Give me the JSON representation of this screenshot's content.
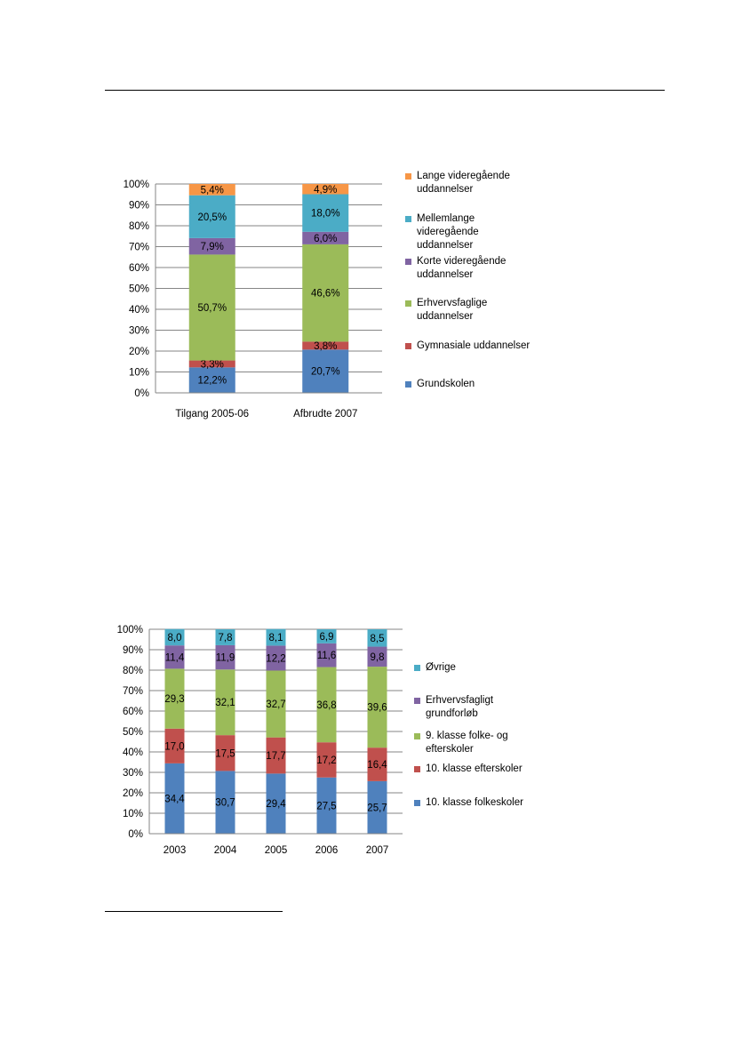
{
  "chart_data": [
    {
      "type": "bar",
      "stacked": true,
      "categories": [
        "Tilgang 2005-06",
        "Afbrudte 2007"
      ],
      "ylim": [
        0,
        100
      ],
      "yticks": [
        "0%",
        "10%",
        "20%",
        "30%",
        "40%",
        "50%",
        "60%",
        "70%",
        "80%",
        "90%",
        "100%"
      ],
      "grid": true,
      "legend_position": "right",
      "series": [
        {
          "name": "Grundskolen",
          "color": "#4F81BD",
          "values": [
            12.2,
            20.7
          ],
          "labels": [
            "12,2%",
            "20,7%"
          ]
        },
        {
          "name": "Gymnasiale uddannelser",
          "color": "#C0504D",
          "values": [
            3.3,
            3.8
          ],
          "labels": [
            "3,3%",
            "3,8%"
          ]
        },
        {
          "name": "Erhvervsfaglige\nuddannelser",
          "color": "#9BBB59",
          "values": [
            50.7,
            46.6
          ],
          "labels": [
            "50,7%",
            "46,6%"
          ]
        },
        {
          "name": "Korte videregående\nuddannelser",
          "color": "#8064A2",
          "values": [
            7.9,
            6.0
          ],
          "labels": [
            "7,9%",
            "6,0%"
          ]
        },
        {
          "name": "Mellemlange\nvideregående\nuddannelser",
          "color": "#4BACC6",
          "values": [
            20.5,
            18.0
          ],
          "labels": [
            "20,5%",
            "18,0%"
          ]
        },
        {
          "name": "Lange videregående\nuddannelser",
          "color": "#F79646",
          "values": [
            5.4,
            4.9
          ],
          "labels": [
            "5,4%",
            "4,9%"
          ]
        }
      ]
    },
    {
      "type": "bar",
      "stacked": true,
      "categories": [
        "2003",
        "2004",
        "2005",
        "2006",
        "2007"
      ],
      "ylim": [
        0,
        100
      ],
      "yticks": [
        "0%",
        "10%",
        "20%",
        "30%",
        "40%",
        "50%",
        "60%",
        "70%",
        "80%",
        "90%",
        "100%"
      ],
      "grid": true,
      "legend_position": "right",
      "series": [
        {
          "name": "10. klasse folkeskoler",
          "color": "#4F81BD",
          "values": [
            34.4,
            30.7,
            29.4,
            27.5,
            25.7
          ],
          "labels": [
            "34,4",
            "30,7",
            "29,4",
            "27,5",
            "25,7"
          ]
        },
        {
          "name": "10. klasse efterskoler",
          "color": "#C0504D",
          "values": [
            17.0,
            17.5,
            17.7,
            17.2,
            16.4
          ],
          "labels": [
            "17,0",
            "17,5",
            "17,7",
            "17,2",
            "16,4"
          ]
        },
        {
          "name": "9. klasse folke- og\nefterskoler",
          "color": "#9BBB59",
          "values": [
            29.3,
            32.1,
            32.7,
            36.8,
            39.6
          ],
          "labels": [
            "29,3",
            "32,1",
            "32,7",
            "36,8",
            "39,6"
          ]
        },
        {
          "name": "Erhvervsfagligt\ngrundforløb",
          "color": "#8064A2",
          "values": [
            11.4,
            11.9,
            12.2,
            11.6,
            9.8
          ],
          "labels": [
            "11,4",
            "11,9",
            "12,2",
            "11,6",
            "9,8"
          ]
        },
        {
          "name": "Øvrige",
          "color": "#4BACC6",
          "values": [
            8.0,
            7.8,
            8.1,
            6.9,
            8.5
          ],
          "labels": [
            "8,0",
            "7,8",
            "8,1",
            "6,9",
            "8,5"
          ]
        }
      ]
    }
  ]
}
